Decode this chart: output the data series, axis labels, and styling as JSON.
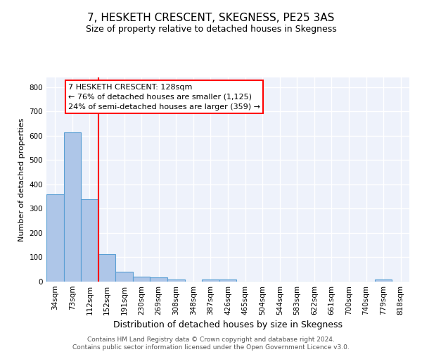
{
  "title": "7, HESKETH CRESCENT, SKEGNESS, PE25 3AS",
  "subtitle": "Size of property relative to detached houses in Skegness",
  "xlabel": "Distribution of detached houses by size in Skegness",
  "ylabel": "Number of detached properties",
  "bar_labels": [
    "34sqm",
    "73sqm",
    "112sqm",
    "152sqm",
    "191sqm",
    "230sqm",
    "269sqm",
    "308sqm",
    "348sqm",
    "387sqm",
    "426sqm",
    "465sqm",
    "504sqm",
    "544sqm",
    "583sqm",
    "622sqm",
    "661sqm",
    "700sqm",
    "740sqm",
    "779sqm",
    "818sqm"
  ],
  "bar_values": [
    358,
    614,
    338,
    114,
    40,
    20,
    16,
    10,
    0,
    8,
    8,
    0,
    0,
    0,
    0,
    0,
    0,
    0,
    0,
    8,
    0
  ],
  "bar_color": "#aec6e8",
  "bar_edge_color": "#5a9fd4",
  "vline_x_index": 2.5,
  "vline_color": "red",
  "annotation_text": "7 HESKETH CRESCENT: 128sqm\n← 76% of detached houses are smaller (1,125)\n24% of semi-detached houses are larger (359) →",
  "annotation_box_color": "white",
  "annotation_box_edge_color": "red",
  "ylim": [
    0,
    840
  ],
  "yticks": [
    0,
    100,
    200,
    300,
    400,
    500,
    600,
    700,
    800
  ],
  "footer_text": "Contains HM Land Registry data © Crown copyright and database right 2024.\nContains public sector information licensed under the Open Government Licence v3.0.",
  "background_color": "#eef2fb",
  "grid_color": "white",
  "title_fontsize": 11,
  "subtitle_fontsize": 9,
  "ylabel_fontsize": 8,
  "xlabel_fontsize": 9,
  "tick_fontsize": 7.5,
  "footer_fontsize": 6.5,
  "annotation_fontsize": 8
}
